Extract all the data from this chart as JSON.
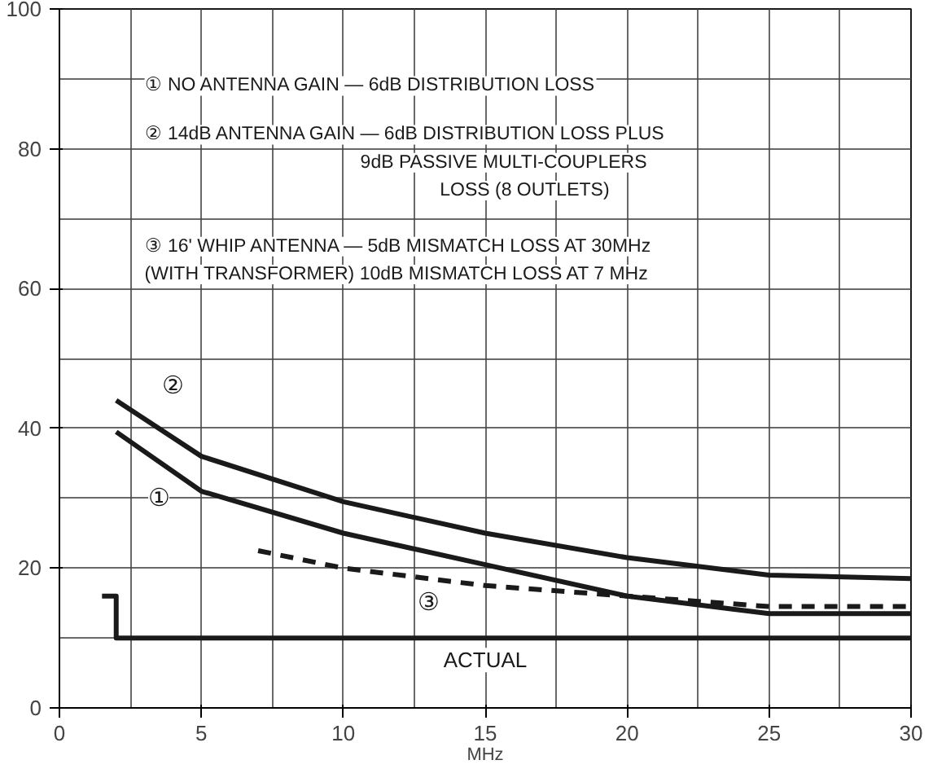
{
  "chart_data": {
    "type": "line",
    "xlabel": "MHz",
    "xlim": [
      0,
      30
    ],
    "ylim": [
      0,
      100
    ],
    "xticks": [
      0,
      5,
      10,
      15,
      20,
      25,
      30
    ],
    "yticks": [
      0,
      20,
      40,
      60,
      80,
      100
    ],
    "grid": true,
    "series": [
      {
        "color": "#1a1a1a",
        "line_style": "solid",
        "x": [
          2,
          5,
          10,
          15,
          20,
          25,
          30
        ],
        "values": [
          39.5,
          31,
          25,
          20.5,
          16,
          13.5,
          13.5
        ]
      },
      {
        "color": "#1a1a1a",
        "line_style": "solid",
        "x": [
          2,
          5,
          10,
          15,
          20,
          25,
          30
        ],
        "values": [
          44,
          36,
          29.5,
          25,
          21.5,
          19,
          18.5
        ]
      },
      {
        "color": "#1a1a1a",
        "line_style": "dashed",
        "x": [
          7,
          10,
          15,
          20,
          25,
          30
        ],
        "values": [
          22.5,
          20,
          17.5,
          16,
          14.5,
          14.5
        ]
      },
      {
        "type": "step",
        "color": "#1a1a1a",
        "line_style": "solid",
        "x": [
          1.5,
          2,
          30
        ],
        "values": [
          16,
          10,
          10
        ]
      }
    ],
    "annotations": [
      "① NO ANTENNA GAIN — 6dB DISTRIBUTION LOSS",
      "② 14dB ANTENNA GAIN — 6dB DISTRIBUTION LOSS PLUS",
      "9dB PASSIVE MULTI-COUPLERS",
      "LOSS (8 OUTLETS)",
      "③ 16' WHIP ANTENNA — 5dB MISMATCH LOSS AT 30MHz",
      "(WITH TRANSFORMER) 10dB MISMATCH LOSS AT 7 MHz",
      {
        "text": "①",
        "x": 3.5,
        "y": 30
      },
      {
        "text": "②",
        "x": 4,
        "y": 46
      },
      {
        "text": "③",
        "x": 13,
        "y": 15
      },
      {
        "text": "ACTUAL",
        "x": 15,
        "y": 10
      }
    ]
  }
}
